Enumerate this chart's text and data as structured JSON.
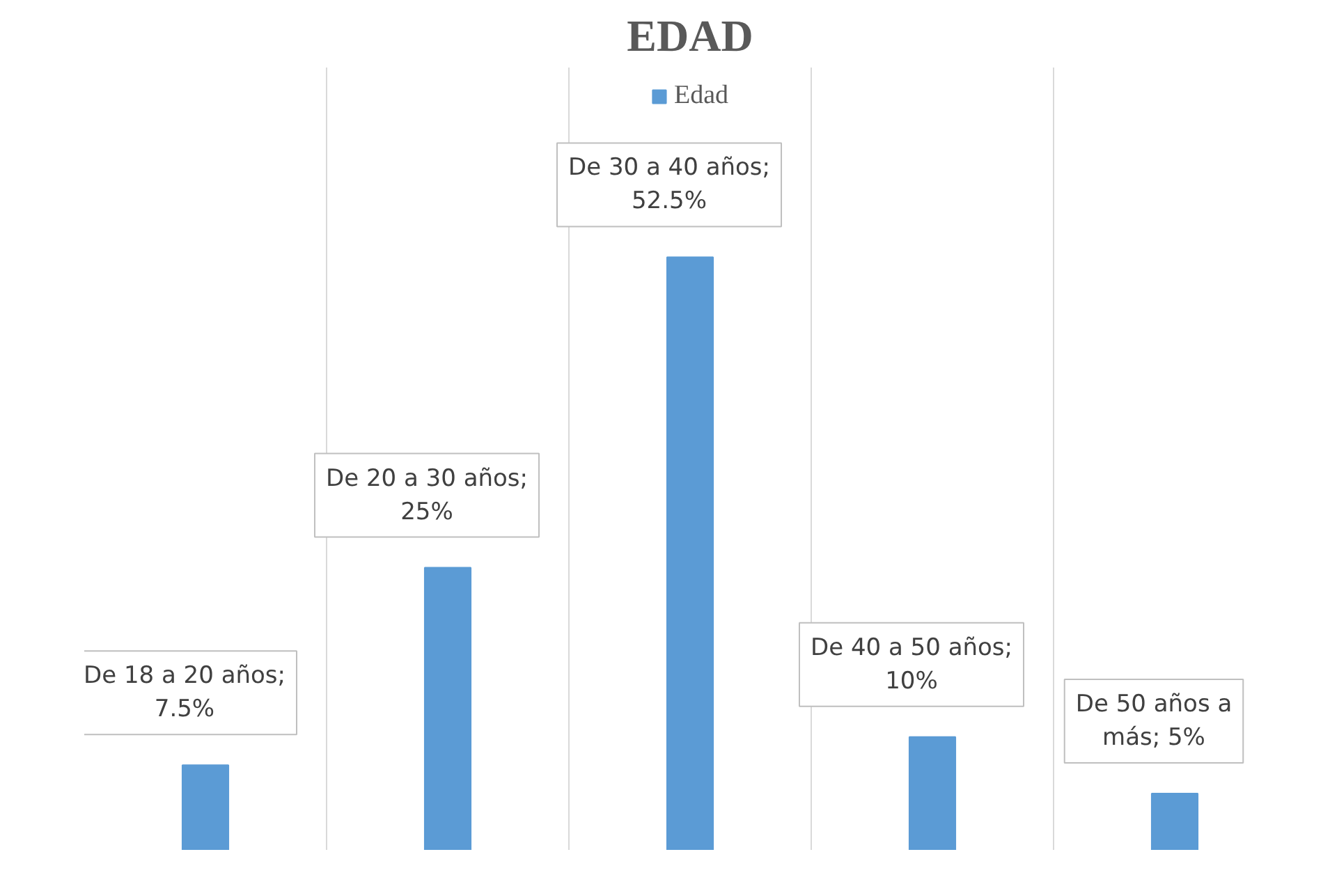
{
  "chart_data": {
    "type": "bar",
    "title": "EDAD",
    "categories": [
      null,
      null,
      null,
      null,
      null
    ],
    "series": [
      {
        "name": "Edad",
        "color": "#5b9bd5",
        "values": [
          7.5,
          25,
          52.5,
          10,
          5
        ],
        "value_labels": [
          "De 18 a 20 años; 7.5%",
          "De 20 a 30 años; 25%",
          "De 30 a 40 años; 52.5%",
          "De 40 a 50 años; 10%",
          "De 50 años a más; 5%"
        ]
      }
    ],
    "grid": "x",
    "legend": "top",
    "tick_labels": false
  }
}
